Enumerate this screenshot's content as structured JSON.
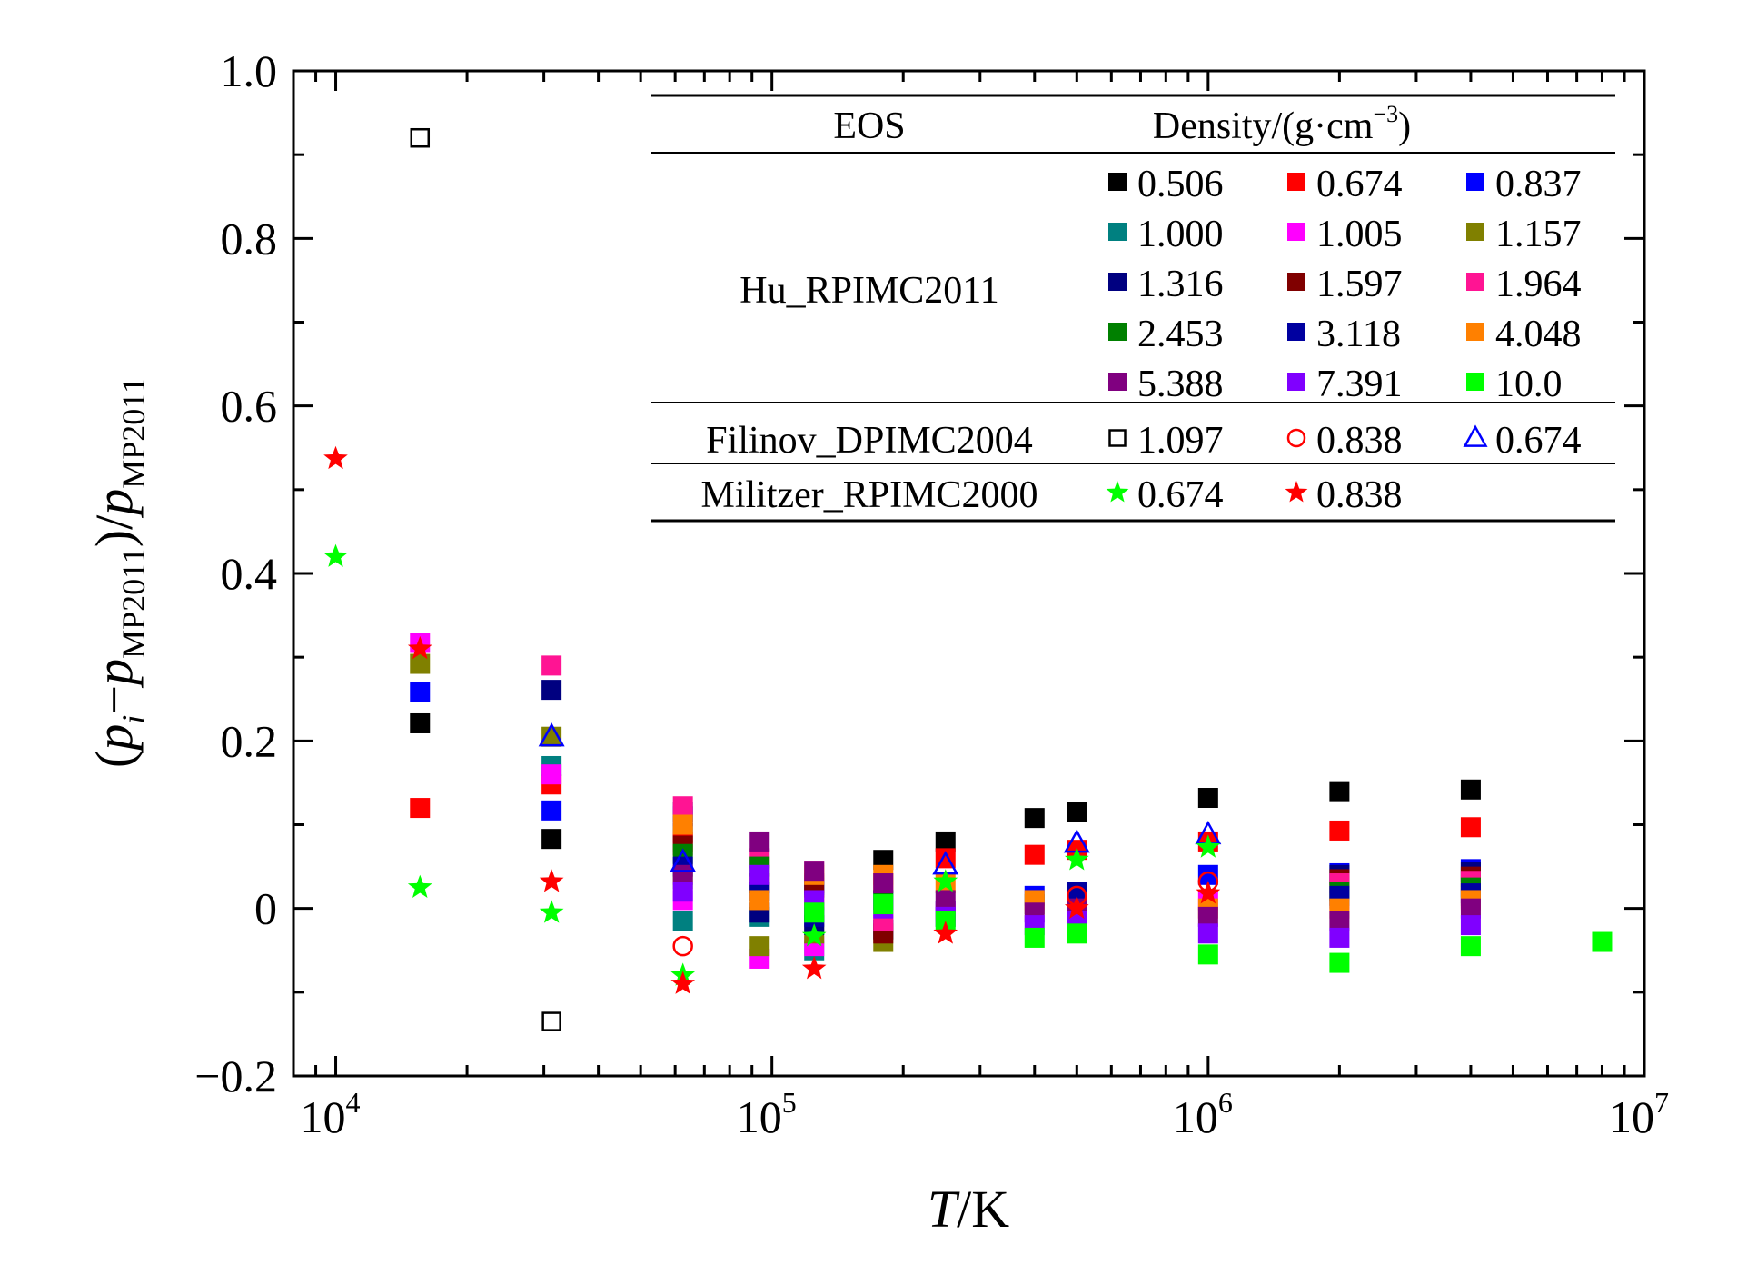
{
  "chart_data": {
    "type": "scatter",
    "xscale": "log",
    "xlim": [
      8000,
      10000000
    ],
    "ylim": [
      -0.2,
      1.0
    ],
    "xlabel": {
      "italic": "T",
      "rest": "/K"
    },
    "ylabel": {
      "open": "(",
      "p": "p",
      "i": "i",
      "minus": "−",
      "mp": "MP2011",
      "close": ")",
      "slash": "/"
    },
    "xticks": [
      {
        "value": 10000,
        "base": "10",
        "exp": "4"
      },
      {
        "value": 100000,
        "base": "10",
        "exp": "5"
      },
      {
        "value": 1000000,
        "base": "10",
        "exp": "6"
      },
      {
        "value": 10000000,
        "base": "10",
        "exp": "7"
      }
    ],
    "yticks": [
      {
        "value": 1.0,
        "label": "1.0"
      },
      {
        "value": 0.8,
        "label": "0.8"
      },
      {
        "value": 0.6,
        "label": "0.6"
      },
      {
        "value": 0.4,
        "label": "0.4"
      },
      {
        "value": 0.2,
        "label": "0.2"
      },
      {
        "value": 0,
        "label": "0"
      },
      {
        "value": -0.2,
        "label": "−0.2"
      }
    ],
    "legend": {
      "header": {
        "eos": "EOS",
        "density_prefix": "Density/(g·cm",
        "density_exp": "−3",
        "density_suffix": ")"
      },
      "groups": [
        {
          "name": "Hu_RPIMC2011",
          "series": [
            0,
            1,
            2,
            3,
            4,
            5,
            6,
            7,
            8,
            9,
            10,
            11,
            12,
            13,
            14
          ]
        },
        {
          "name": "Filinov_DPIMC2004",
          "series": [
            15,
            16,
            17
          ]
        },
        {
          "name": "Militzer_RPIMC2000",
          "series": [
            18,
            19
          ]
        }
      ]
    },
    "series": [
      {
        "name": "0.506",
        "marker": "square",
        "color": "#000000",
        "points": [
          [
            15600,
            0.221
          ],
          [
            31250,
            0.083
          ],
          [
            62500,
            0.09
          ],
          [
            125000,
            0.025
          ],
          [
            180000,
            0.058
          ],
          [
            250000,
            0.08
          ],
          [
            400000,
            0.108
          ],
          [
            500000,
            0.115
          ],
          [
            1000000,
            0.132
          ],
          [
            2000000,
            0.14
          ],
          [
            4000000,
            0.142
          ]
        ]
      },
      {
        "name": "0.674",
        "marker": "square",
        "color": "#ff0000",
        "points": [
          [
            15600,
            0.12
          ],
          [
            31250,
            0.148
          ],
          [
            62500,
            0.08
          ],
          [
            125000,
            0.01
          ],
          [
            180000,
            0.03
          ],
          [
            250000,
            0.06
          ],
          [
            400000,
            0.064
          ],
          [
            500000,
            0.07
          ],
          [
            1000000,
            0.08
          ],
          [
            2000000,
            0.093
          ],
          [
            4000000,
            0.097
          ]
        ]
      },
      {
        "name": "0.837",
        "marker": "square",
        "color": "#0000ff",
        "points": [
          [
            15600,
            0.258
          ],
          [
            31250,
            0.117
          ],
          [
            62500,
            0.11
          ],
          [
            125000,
            0.028
          ],
          [
            180000,
            0.01
          ],
          [
            250000,
            -0.003
          ],
          [
            400000,
            0.015
          ],
          [
            500000,
            0.02
          ],
          [
            1000000,
            0.04
          ],
          [
            2000000,
            0.042
          ],
          [
            4000000,
            0.047
          ]
        ]
      },
      {
        "name": "1.000",
        "marker": "square",
        "color": "#008080",
        "points": [
          [
            31250,
            0.17
          ],
          [
            62500,
            -0.015
          ],
          [
            93750,
            -0.01
          ],
          [
            125000,
            -0.05
          ],
          [
            180000,
            -0.025
          ],
          [
            250000,
            -0.01
          ],
          [
            500000,
            0.005
          ],
          [
            2000000,
            0.012
          ],
          [
            4000000,
            0.015
          ]
        ]
      },
      {
        "name": "1.005",
        "marker": "square",
        "color": "#ff00ff",
        "points": [
          [
            15600,
            0.317
          ],
          [
            31250,
            0.16
          ],
          [
            62500,
            0.01
          ],
          [
            93750,
            -0.06
          ],
          [
            125000,
            -0.045
          ],
          [
            180000,
            -0.02
          ],
          [
            250000,
            -0.005
          ],
          [
            500000,
            0.0
          ],
          [
            1000000,
            0.01
          ],
          [
            2000000,
            0.01
          ],
          [
            4000000,
            0.012
          ]
        ]
      },
      {
        "name": "1.157",
        "marker": "square",
        "color": "#808000",
        "points": [
          [
            15600,
            0.292
          ],
          [
            31250,
            0.205
          ],
          [
            62500,
            0.035
          ],
          [
            93750,
            -0.045
          ],
          [
            125000,
            -0.03
          ],
          [
            180000,
            -0.04
          ],
          [
            400000,
            0.005
          ],
          [
            2000000,
            0.022
          ],
          [
            4000000,
            0.025
          ]
        ]
      },
      {
        "name": "1.316",
        "marker": "square",
        "color": "#000080",
        "points": [
          [
            31250,
            0.261
          ],
          [
            62500,
            0.115
          ],
          [
            93750,
            -0.005
          ],
          [
            125000,
            -0.02
          ],
          [
            180000,
            -0.025
          ],
          [
            2000000,
            0.04
          ],
          [
            4000000,
            0.043
          ]
        ]
      },
      {
        "name": "1.597",
        "marker": "square",
        "color": "#800000",
        "points": [
          [
            62500,
            0.075
          ],
          [
            93750,
            0.03
          ],
          [
            125000,
            0.03
          ],
          [
            180000,
            -0.03
          ],
          [
            2000000,
            0.035
          ],
          [
            4000000,
            0.038
          ]
        ]
      },
      {
        "name": "1.964",
        "marker": "square",
        "color": "#ff1493",
        "points": [
          [
            31250,
            0.29
          ],
          [
            62500,
            0.122
          ],
          [
            93750,
            0.06
          ],
          [
            125000,
            0.045
          ],
          [
            180000,
            -0.015
          ],
          [
            2000000,
            0.03
          ],
          [
            4000000,
            0.033
          ]
        ]
      },
      {
        "name": "2.453",
        "marker": "square",
        "color": "#008000",
        "points": [
          [
            62500,
            0.065
          ],
          [
            93750,
            0.05
          ],
          [
            125000,
            -0.005
          ],
          [
            180000,
            0.01
          ],
          [
            2000000,
            0.02
          ],
          [
            4000000,
            0.025
          ]
        ]
      },
      {
        "name": "3.118",
        "marker": "square",
        "color": "#0000a0",
        "points": [
          [
            62500,
            0.05
          ],
          [
            93750,
            0.02
          ],
          [
            125000,
            -0.01
          ],
          [
            500000,
            0.02
          ],
          [
            2000000,
            0.015
          ],
          [
            4000000,
            0.018
          ]
        ]
      },
      {
        "name": "4.048",
        "marker": "square",
        "color": "#ff8000",
        "points": [
          [
            62500,
            0.1
          ],
          [
            93750,
            0.01
          ],
          [
            125000,
            0.04
          ],
          [
            180000,
            0.04
          ],
          [
            250000,
            0.03
          ],
          [
            400000,
            0.01
          ],
          [
            1000000,
            0.0
          ],
          [
            2000000,
            0.0
          ],
          [
            4000000,
            0.01
          ]
        ]
      },
      {
        "name": "5.388",
        "marker": "square",
        "color": "#800080",
        "points": [
          [
            62500,
            0.04
          ],
          [
            93750,
            0.08
          ],
          [
            125000,
            0.045
          ],
          [
            180000,
            0.03
          ],
          [
            250000,
            0.01
          ],
          [
            400000,
            -0.005
          ],
          [
            500000,
            0.0
          ],
          [
            1000000,
            -0.01
          ],
          [
            2000000,
            -0.015
          ],
          [
            4000000,
            0.0
          ]
        ]
      },
      {
        "name": "7.391",
        "marker": "square",
        "color": "#8000ff",
        "points": [
          [
            62500,
            0.02
          ],
          [
            93750,
            0.04
          ],
          [
            125000,
            0.01
          ],
          [
            180000,
            0.0
          ],
          [
            250000,
            -0.01
          ],
          [
            400000,
            -0.02
          ],
          [
            500000,
            -0.015
          ],
          [
            1000000,
            -0.03
          ],
          [
            2000000,
            -0.035
          ],
          [
            4000000,
            -0.02
          ]
        ]
      },
      {
        "name": "10.0",
        "marker": "square",
        "color": "#00ff00",
        "points": [
          [
            125000,
            -0.005
          ],
          [
            180000,
            0.005
          ],
          [
            250000,
            -0.015
          ],
          [
            400000,
            -0.035
          ],
          [
            500000,
            -0.03
          ],
          [
            1000000,
            -0.055
          ],
          [
            2000000,
            -0.065
          ],
          [
            4000000,
            -0.045
          ],
          [
            8000000,
            -0.04
          ]
        ]
      },
      {
        "name": "1.097",
        "marker": "open-square",
        "color": "#000000",
        "points": [
          [
            15600,
            0.92
          ],
          [
            31250,
            -0.135
          ]
        ]
      },
      {
        "name": "0.838",
        "marker": "open-circle",
        "color": "#ff0000",
        "points": [
          [
            62500,
            -0.045
          ],
          [
            500000,
            0.015
          ],
          [
            1000000,
            0.032
          ]
        ]
      },
      {
        "name": "0.674",
        "marker": "open-triangle",
        "color": "#0000ff",
        "points": [
          [
            31250,
            0.205
          ],
          [
            62500,
            0.055
          ],
          [
            250000,
            0.052
          ],
          [
            500000,
            0.078
          ],
          [
            1000000,
            0.088
          ]
        ]
      },
      {
        "name": "0.674",
        "marker": "star",
        "color": "#00ff00",
        "points": [
          [
            10000,
            0.42
          ],
          [
            15600,
            0.025
          ],
          [
            31250,
            -0.005
          ],
          [
            62500,
            -0.08
          ],
          [
            125000,
            -0.033
          ],
          [
            250000,
            0.032
          ],
          [
            500000,
            0.058
          ],
          [
            1000000,
            0.073
          ]
        ]
      },
      {
        "name": "0.838",
        "marker": "star",
        "color": "#ff0000",
        "points": [
          [
            10000,
            0.537
          ],
          [
            15600,
            0.31
          ],
          [
            31250,
            0.032
          ],
          [
            62500,
            -0.09
          ],
          [
            125000,
            -0.072
          ],
          [
            250000,
            -0.03
          ],
          [
            500000,
            0.0
          ],
          [
            1000000,
            0.018
          ]
        ]
      }
    ]
  }
}
